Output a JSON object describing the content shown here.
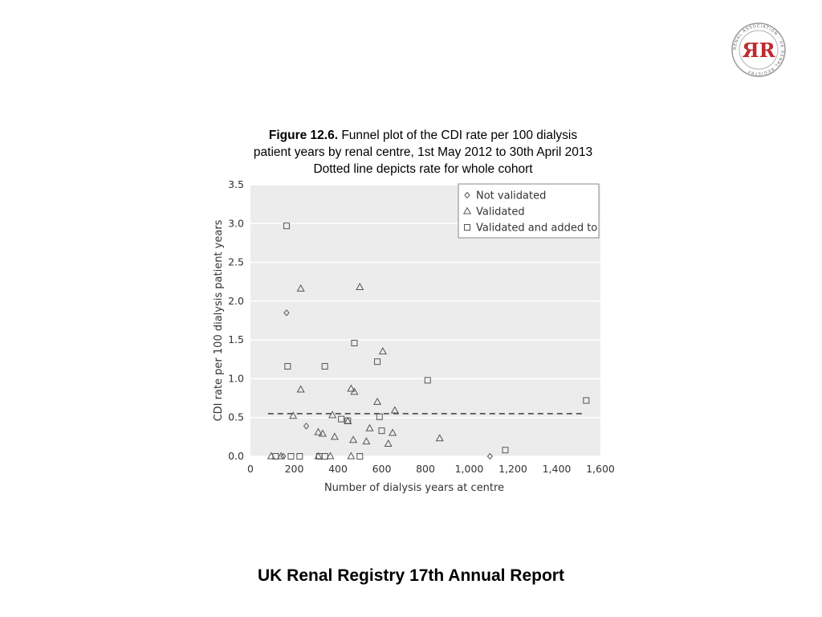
{
  "header": {
    "logo_text": "RENAL ASSOCIATION · UK RENAL REGISTRY",
    "logo_glyph": "ЯR",
    "logo_color": "#c0282d"
  },
  "caption": {
    "figure_label": "Figure 12.6.",
    "line1": " Funnel plot of the CDI rate per 100 dialysis",
    "line2": "patient years by renal centre, 1st May 2012 to 30th April 2013",
    "line3": "Dotted line depicts rate for whole cohort"
  },
  "footer": {
    "title": "UK Renal Registry 17th Annual Report"
  },
  "chart_data": {
    "type": "scatter",
    "xlabel": "Number of dialysis years at centre",
    "ylabel": "CDI rate per 100 dialysis patient years",
    "xlim": [
      0,
      1600
    ],
    "ylim": [
      0,
      3.5
    ],
    "x_ticks": [
      0,
      200,
      400,
      600,
      800,
      1000,
      1200,
      1400,
      1600
    ],
    "x_tick_labels": [
      "0",
      "200",
      "400",
      "600",
      "800",
      "1,000",
      "1,200",
      "1,400",
      "1,600"
    ],
    "y_ticks": [
      0,
      0.5,
      1.0,
      1.5,
      2.0,
      2.5,
      3.0,
      3.5
    ],
    "y_tick_labels": [
      "0.0",
      "0.5",
      "1.0",
      "1.5",
      "2.0",
      "2.5",
      "3.0",
      "3.5"
    ],
    "grid": "horizontal",
    "legend_position": "top-right",
    "cohort_rate": {
      "value": 0.55,
      "x_range": [
        80,
        1530
      ]
    },
    "series": [
      {
        "name": "Not validated",
        "marker": "diamond",
        "points": [
          [
            165,
            1.85
          ],
          [
            255,
            0.39
          ],
          [
            150,
            0.0
          ],
          [
            1095,
            0.0
          ]
        ]
      },
      {
        "name": "Validated",
        "marker": "triangle",
        "points": [
          [
            230,
            2.16
          ],
          [
            500,
            2.18
          ],
          [
            605,
            1.35
          ],
          [
            230,
            0.86
          ],
          [
            460,
            0.87
          ],
          [
            475,
            0.83
          ],
          [
            580,
            0.7
          ],
          [
            660,
            0.59
          ],
          [
            195,
            0.52
          ],
          [
            375,
            0.53
          ],
          [
            445,
            0.45
          ],
          [
            310,
            0.31
          ],
          [
            330,
            0.29
          ],
          [
            385,
            0.25
          ],
          [
            545,
            0.36
          ],
          [
            470,
            0.21
          ],
          [
            530,
            0.19
          ],
          [
            650,
            0.3
          ],
          [
            630,
            0.16
          ],
          [
            865,
            0.23
          ],
          [
            95,
            0.0
          ],
          [
            140,
            0.0
          ],
          [
            310,
            0.0
          ],
          [
            365,
            0.0
          ],
          [
            460,
            0.0
          ]
        ]
      },
      {
        "name": "Validated and added to",
        "marker": "square",
        "points": [
          [
            165,
            2.97
          ],
          [
            475,
            1.46
          ],
          [
            170,
            1.16
          ],
          [
            340,
            1.16
          ],
          [
            580,
            1.22
          ],
          [
            810,
            0.98
          ],
          [
            1535,
            0.72
          ],
          [
            415,
            0.48
          ],
          [
            445,
            0.46
          ],
          [
            590,
            0.51
          ],
          [
            600,
            0.33
          ],
          [
            1165,
            0.08
          ],
          [
            115,
            0.0
          ],
          [
            185,
            0.0
          ],
          [
            225,
            0.0
          ],
          [
            315,
            0.0
          ],
          [
            340,
            0.0
          ],
          [
            500,
            0.0
          ]
        ]
      }
    ]
  }
}
